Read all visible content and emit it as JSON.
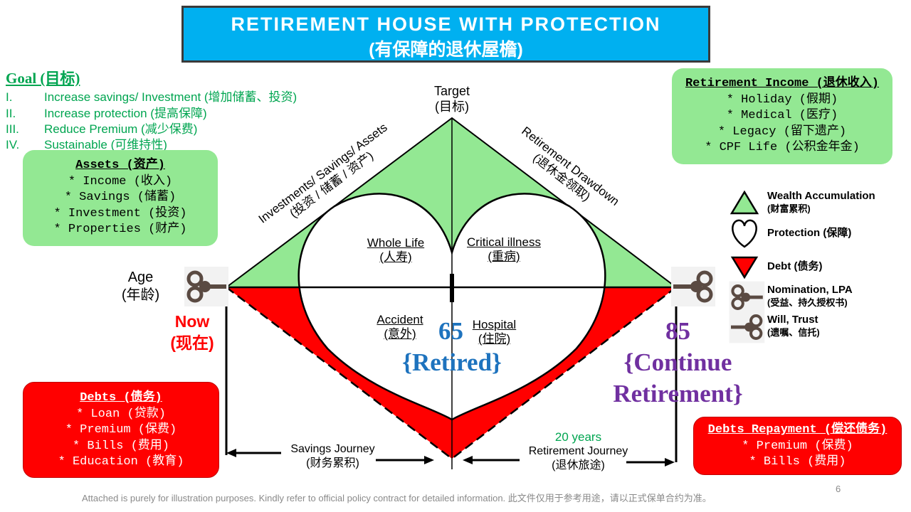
{
  "title": {
    "line1": "RETIREMENT HOUSE WITH PROTECTION",
    "line2": "(有保障的退休屋檐)"
  },
  "goal": {
    "title": "Goal (目标)",
    "items": [
      {
        "num": "I.",
        "text": "Increase savings/ Investment (增加储蓄、投资)"
      },
      {
        "num": "II.",
        "text": "Increase protection (提高保障)"
      },
      {
        "num": "III.",
        "text": "Reduce Premium (减少保费)"
      },
      {
        "num": "IV.",
        "text": "Sustainable (可维持性)"
      }
    ]
  },
  "assets": {
    "title": "Assets (资产)",
    "items": [
      "* Income (收入)",
      "* Savings (储蓄)",
      "* Investment (投资)",
      "* Properties (财产)"
    ]
  },
  "retirement_income": {
    "title": "Retirement Income (退休收入)",
    "items": [
      "* Holiday (假期)",
      "* Medical (医疗)",
      "* Legacy (留下遗产)",
      "* CPF Life (公积金年金)"
    ]
  },
  "debts": {
    "title": "Debts (债务)",
    "items": [
      "* Loan (贷款)",
      "* Premium (保费)",
      "* Bills (费用)",
      "* Education (教育)"
    ]
  },
  "debts_repayment": {
    "title": "Debts Repayment (偿还债务)",
    "items": [
      "* Premium (保费)",
      "* Bills (费用)"
    ]
  },
  "target": {
    "en": "Target",
    "zh": "(目标)"
  },
  "left_slope": {
    "en": "Investments/ Savings/ Assets",
    "zh": "(投资 / 储蓄 / 资产)"
  },
  "right_slope": {
    "en": "Retirement Drawdown",
    "zh": "(退休金领取)"
  },
  "heart": {
    "whole_life": {
      "en": "Whole Life",
      "zh": "(人寿)"
    },
    "critical": {
      "en": "Critical illness",
      "zh": "(重病)"
    },
    "accident": {
      "en": "Accident",
      "zh": "(意外)"
    },
    "hospital": {
      "en": "Hospital",
      "zh": "(住院)"
    }
  },
  "age": {
    "en": "Age",
    "zh": "(年龄)"
  },
  "now": {
    "en": "Now",
    "zh": "(现在)"
  },
  "retired": {
    "age": "65",
    "label": "{Retired}"
  },
  "continue": {
    "age": "85",
    "line1": "{Continue",
    "line2": "Retirement}"
  },
  "savings_journey": {
    "en": "Savings Journey",
    "zh": "(财务累积)"
  },
  "retirement_journey": {
    "years": "20 years",
    "en": "Retirement Journey",
    "zh": "(退休旅途)"
  },
  "legend": {
    "wealth": {
      "en": "Wealth Accumulation",
      "zh": "(财富累积)"
    },
    "protection": "Protection (保障)",
    "debt": "Debt (债务)",
    "nomination": {
      "en": "Nomination, LPA",
      "zh": "(受益、持久授权书)"
    },
    "will": {
      "en": "Will, Trust",
      "zh": "(遗嘱、信托)"
    }
  },
  "footer": "Attached is purely for illustration purposes.  Kindly refer to official policy contract for detailed information.   此文件仅用于参考用途，请以正式保单合约为准。",
  "page_number": "6",
  "colors": {
    "green": "#93e893",
    "red": "#ff0000",
    "blue": "#00b0f0",
    "retired_blue": "#1e73be",
    "purple": "#7030a0",
    "goal_green": "#00a550"
  }
}
